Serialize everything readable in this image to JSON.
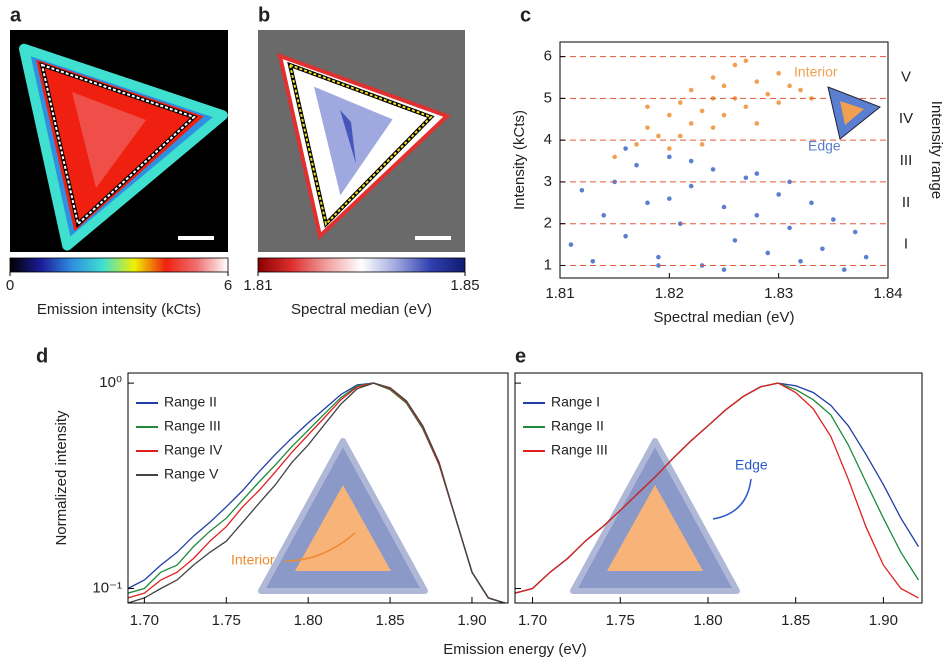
{
  "chart_data": [
    {
      "type": "heatmap",
      "panel": "a",
      "colorbar_label": "Emission intensity (kCts)",
      "clim": [
        0,
        6
      ],
      "cticks": [
        0,
        6
      ],
      "colormap": [
        "#000000",
        "#1c1c9a",
        "#2f8fe0",
        "#40e0d0",
        "#f0f000",
        "#f02010",
        "#f07070",
        "#ffffff"
      ]
    },
    {
      "type": "heatmap",
      "panel": "b",
      "colorbar_label": "Spectral median (eV)",
      "clim": [
        1.81,
        1.85
      ],
      "cticks": [
        1.81,
        1.85
      ],
      "colormap": [
        "#8a0000",
        "#e03030",
        "#f0a0a0",
        "#ffffff",
        "#a0a8e0",
        "#3040b0",
        "#101a70"
      ]
    },
    {
      "type": "scatter",
      "panel": "c",
      "xlabel": "Spectral median (eV)",
      "ylabel": "Intensity (kCts)",
      "y2label": "Intensity range",
      "xlim": [
        1.81,
        1.84
      ],
      "xticks": [
        1.81,
        1.82,
        1.83,
        1.84
      ],
      "ylim": [
        0.7,
        6.35
      ],
      "yticks": [
        1,
        2,
        3,
        4,
        5,
        6
      ],
      "range_labels": [
        "I",
        "II",
        "III",
        "IV",
        "V"
      ],
      "series": [
        {
          "name": "Interior",
          "color": "#f0a050",
          "x": [
            1.815,
            1.817,
            1.818,
            1.819,
            1.82,
            1.82,
            1.821,
            1.822,
            1.822,
            1.823,
            1.823,
            1.824,
            1.824,
            1.825,
            1.825,
            1.826,
            1.826,
            1.827,
            1.828,
            1.828,
            1.829,
            1.83,
            1.83,
            1.831,
            1.832,
            1.833,
            1.818,
            1.821,
            1.824,
            1.827
          ],
          "values": [
            3.6,
            3.9,
            4.3,
            4.1,
            4.6,
            3.8,
            4.9,
            4.4,
            5.2,
            4.7,
            3.9,
            5.0,
            5.5,
            4.6,
            5.3,
            5.0,
            5.8,
            4.8,
            5.4,
            4.4,
            5.1,
            5.6,
            4.9,
            5.3,
            5.2,
            5.0,
            4.8,
            4.1,
            4.3,
            5.9
          ]
        },
        {
          "name": "Edge",
          "color": "#5b7fd0",
          "x": [
            1.811,
            1.812,
            1.813,
            1.814,
            1.815,
            1.816,
            1.817,
            1.818,
            1.819,
            1.82,
            1.821,
            1.822,
            1.823,
            1.824,
            1.825,
            1.826,
            1.827,
            1.828,
            1.829,
            1.83,
            1.831,
            1.832,
            1.833,
            1.834,
            1.835,
            1.836,
            1.837,
            1.838,
            1.816,
            1.819,
            1.822,
            1.825,
            1.828,
            1.831,
            1.82
          ],
          "values": [
            1.5,
            2.8,
            1.1,
            2.2,
            3.0,
            1.7,
            3.4,
            2.5,
            1.2,
            3.6,
            2.0,
            2.9,
            1.0,
            3.3,
            2.4,
            1.6,
            3.1,
            2.2,
            1.3,
            2.7,
            1.9,
            1.1,
            2.5,
            1.4,
            2.1,
            0.9,
            1.8,
            1.2,
            3.8,
            1.0,
            3.5,
            0.9,
            3.2,
            3.0,
            2.6
          ]
        }
      ]
    },
    {
      "type": "line",
      "panel": "d",
      "xlabel": "Emission energy (eV)",
      "ylabel": "Normalized intensity",
      "annotation": "Interior",
      "log_y": true,
      "xlim": [
        1.69,
        1.922
      ],
      "xticks": [
        {
          "value": 1.7,
          "label": "1.70"
        },
        1.75,
        {
          "value": 1.8,
          "label": "1.80"
        },
        1.85,
        {
          "value": 1.9,
          "label": "1.90"
        }
      ],
      "ylim": [
        0.085,
        1.12
      ],
      "yticks": [
        {
          "value": 0.1,
          "label": "10⁻¹"
        },
        {
          "value": 1,
          "label": "10⁰"
        }
      ],
      "x": [
        1.69,
        1.7,
        1.71,
        1.72,
        1.73,
        1.74,
        1.75,
        1.76,
        1.77,
        1.78,
        1.79,
        1.8,
        1.81,
        1.82,
        1.83,
        1.84,
        1.85,
        1.86,
        1.87,
        1.88,
        1.89,
        1.9,
        1.91,
        1.92
      ],
      "series": [
        {
          "name": "Range II",
          "color": "#1f3fa8",
          "values": [
            0.1,
            0.11,
            0.13,
            0.15,
            0.18,
            0.21,
            0.25,
            0.3,
            0.37,
            0.45,
            0.54,
            0.64,
            0.75,
            0.88,
            0.98,
            1.0,
            0.93,
            0.8,
            0.6,
            0.4,
            0.22,
            0.12,
            0.09,
            0.085
          ]
        },
        {
          "name": "Range III",
          "color": "#1e8a3a",
          "values": [
            0.095,
            0.1,
            0.12,
            0.13,
            0.16,
            0.19,
            0.22,
            0.27,
            0.33,
            0.4,
            0.49,
            0.59,
            0.71,
            0.85,
            0.97,
            1.0,
            0.93,
            0.8,
            0.6,
            0.4,
            0.22,
            0.12,
            0.09,
            0.085
          ]
        },
        {
          "name": "Range IV",
          "color": "#e02020",
          "values": [
            0.09,
            0.095,
            0.11,
            0.12,
            0.14,
            0.17,
            0.2,
            0.25,
            0.3,
            0.37,
            0.46,
            0.56,
            0.68,
            0.83,
            0.96,
            1.0,
            0.94,
            0.81,
            0.61,
            0.4,
            0.22,
            0.12,
            0.09,
            0.085
          ]
        },
        {
          "name": "Range V",
          "color": "#444444",
          "values": [
            0.085,
            0.09,
            0.1,
            0.11,
            0.13,
            0.15,
            0.17,
            0.21,
            0.26,
            0.32,
            0.41,
            0.5,
            0.63,
            0.79,
            0.94,
            1.0,
            0.95,
            0.82,
            0.62,
            0.41,
            0.22,
            0.12,
            0.09,
            0.085
          ]
        }
      ]
    },
    {
      "type": "line",
      "panel": "e",
      "annotation": "Edge",
      "log_y": true,
      "xlim": [
        1.69,
        1.922
      ],
      "xticks": [
        {
          "value": 1.7,
          "label": "1.70"
        },
        1.75,
        {
          "value": 1.8,
          "label": "1.80"
        },
        1.85,
        {
          "value": 1.9,
          "label": "1.90"
        }
      ],
      "ylim": [
        0.085,
        1.12
      ],
      "x": [
        1.69,
        1.7,
        1.71,
        1.72,
        1.73,
        1.74,
        1.75,
        1.76,
        1.77,
        1.78,
        1.79,
        1.8,
        1.81,
        1.82,
        1.83,
        1.84,
        1.85,
        1.86,
        1.87,
        1.88,
        1.89,
        1.9,
        1.91,
        1.92
      ],
      "series": [
        {
          "name": "Range I",
          "color": "#1f3fa8",
          "values": [
            0.095,
            0.1,
            0.12,
            0.14,
            0.17,
            0.2,
            0.24,
            0.29,
            0.35,
            0.43,
            0.52,
            0.62,
            0.74,
            0.86,
            0.96,
            1.0,
            0.97,
            0.9,
            0.78,
            0.62,
            0.45,
            0.32,
            0.22,
            0.16
          ]
        },
        {
          "name": "Range II",
          "color": "#1e8a3a",
          "values": [
            0.095,
            0.1,
            0.12,
            0.14,
            0.17,
            0.2,
            0.24,
            0.29,
            0.35,
            0.43,
            0.52,
            0.62,
            0.74,
            0.86,
            0.96,
            1.0,
            0.93,
            0.83,
            0.7,
            0.5,
            0.33,
            0.22,
            0.15,
            0.11
          ]
        },
        {
          "name": "Range III",
          "color": "#e02020",
          "values": [
            0.095,
            0.1,
            0.12,
            0.14,
            0.17,
            0.2,
            0.24,
            0.29,
            0.35,
            0.43,
            0.52,
            0.62,
            0.74,
            0.86,
            0.96,
            1.0,
            0.9,
            0.75,
            0.55,
            0.34,
            0.2,
            0.13,
            0.1,
            0.09
          ]
        }
      ]
    }
  ]
}
